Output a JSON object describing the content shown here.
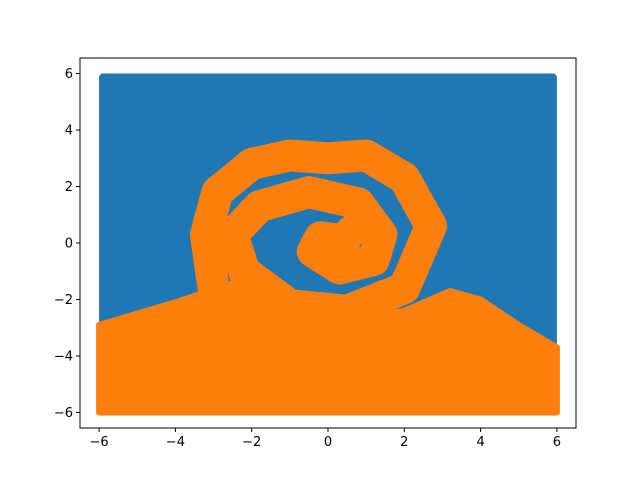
{
  "chart_data": {
    "type": "scatter",
    "title": "",
    "xlabel": "",
    "ylabel": "",
    "xlim": [
      -6.5,
      6.5
    ],
    "ylim": [
      -6.55,
      6.55
    ],
    "grid": false,
    "legend": "none",
    "x_ticks": [
      -6,
      -4,
      -2,
      0,
      2,
      4,
      6
    ],
    "y_ticks": [
      -6,
      -4,
      -2,
      0,
      2,
      4,
      6
    ],
    "x_tick_labels": [
      "−6",
      "−4",
      "−2",
      "0",
      "2",
      "4",
      "6"
    ],
    "y_tick_labels": [
      "−6",
      "−4",
      "−2",
      "0",
      "2",
      "4",
      "6"
    ],
    "domain": {
      "x": [
        -6,
        6
      ],
      "y": [
        -6,
        6
      ]
    },
    "series": [
      {
        "color": "#1f77b4",
        "region": "background (all points not in orange region)"
      },
      {
        "color": "#ff7f0e",
        "lower_boundary": [
          [
            -6,
            -2.9
          ],
          [
            -4,
            -2.1
          ],
          [
            -2,
            -1.2
          ],
          [
            0,
            -2.4
          ],
          [
            1,
            -2.6
          ],
          [
            2,
            -2.4
          ],
          [
            3.2,
            -1.7
          ],
          [
            4,
            -2.0
          ],
          [
            5,
            -2.9
          ],
          [
            6,
            -3.7
          ]
        ],
        "spiral_band": [
          [
            -3.2,
            0.3
          ],
          [
            -2.9,
            1.8
          ],
          [
            -2,
            2.8
          ],
          [
            -1,
            3.1
          ],
          [
            0,
            3.0
          ],
          [
            1,
            3.1
          ],
          [
            2,
            2.3
          ],
          [
            2.7,
            0.6
          ],
          [
            2,
            -1.6
          ],
          [
            0.5,
            -2.4
          ],
          [
            -1,
            -2.2
          ],
          [
            -2.2,
            -1.0
          ],
          [
            -2.5,
            0.3
          ],
          [
            -1.8,
            1.3
          ],
          [
            -0.5,
            1.8
          ],
          [
            0.8,
            1.4
          ],
          [
            1.4,
            0.3
          ],
          [
            1.2,
            -0.6
          ],
          [
            0.3,
            -0.9
          ],
          [
            -0.4,
            -0.3
          ],
          [
            -0.2,
            0.2
          ],
          [
            0.4,
            0.1
          ],
          [
            0.6,
            0.4
          ]
        ]
      }
    ]
  }
}
